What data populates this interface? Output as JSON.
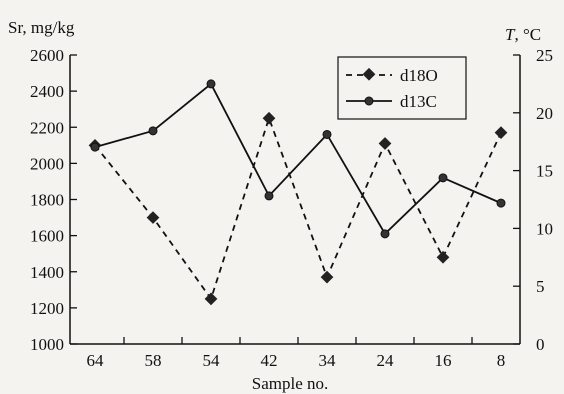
{
  "chart_data": {
    "type": "line",
    "title": "",
    "xlabel": "Sample no.",
    "ylabel_left": "Sr, mg/kg",
    "ylabel_right_italic": "T",
    "ylabel_right_unit": ", °C",
    "categories": [
      "64",
      "58",
      "54",
      "42",
      "34",
      "24",
      "16",
      "8"
    ],
    "ylim_left": [
      1000,
      2600
    ],
    "yticks_left": [
      "1000",
      "1200",
      "1400",
      "1600",
      "1800",
      "2000",
      "2200",
      "2400",
      "2600"
    ],
    "ylim_right": [
      0,
      25
    ],
    "yticks_right": [
      "0",
      "5",
      "10",
      "15",
      "20",
      "25"
    ],
    "grid": false,
    "legend_position": "top-right",
    "series": [
      {
        "name": "d18O",
        "axis": "left",
        "line_style": "dashed",
        "marker": "diamond",
        "values": [
          2100,
          1700,
          1250,
          2250,
          1370,
          2110,
          1480,
          2170
        ]
      },
      {
        "name": "d13C",
        "axis": "left",
        "line_style": "solid",
        "marker": "circle",
        "values": [
          2090,
          2180,
          2440,
          1820,
          2160,
          1610,
          1920,
          1780
        ]
      }
    ]
  }
}
